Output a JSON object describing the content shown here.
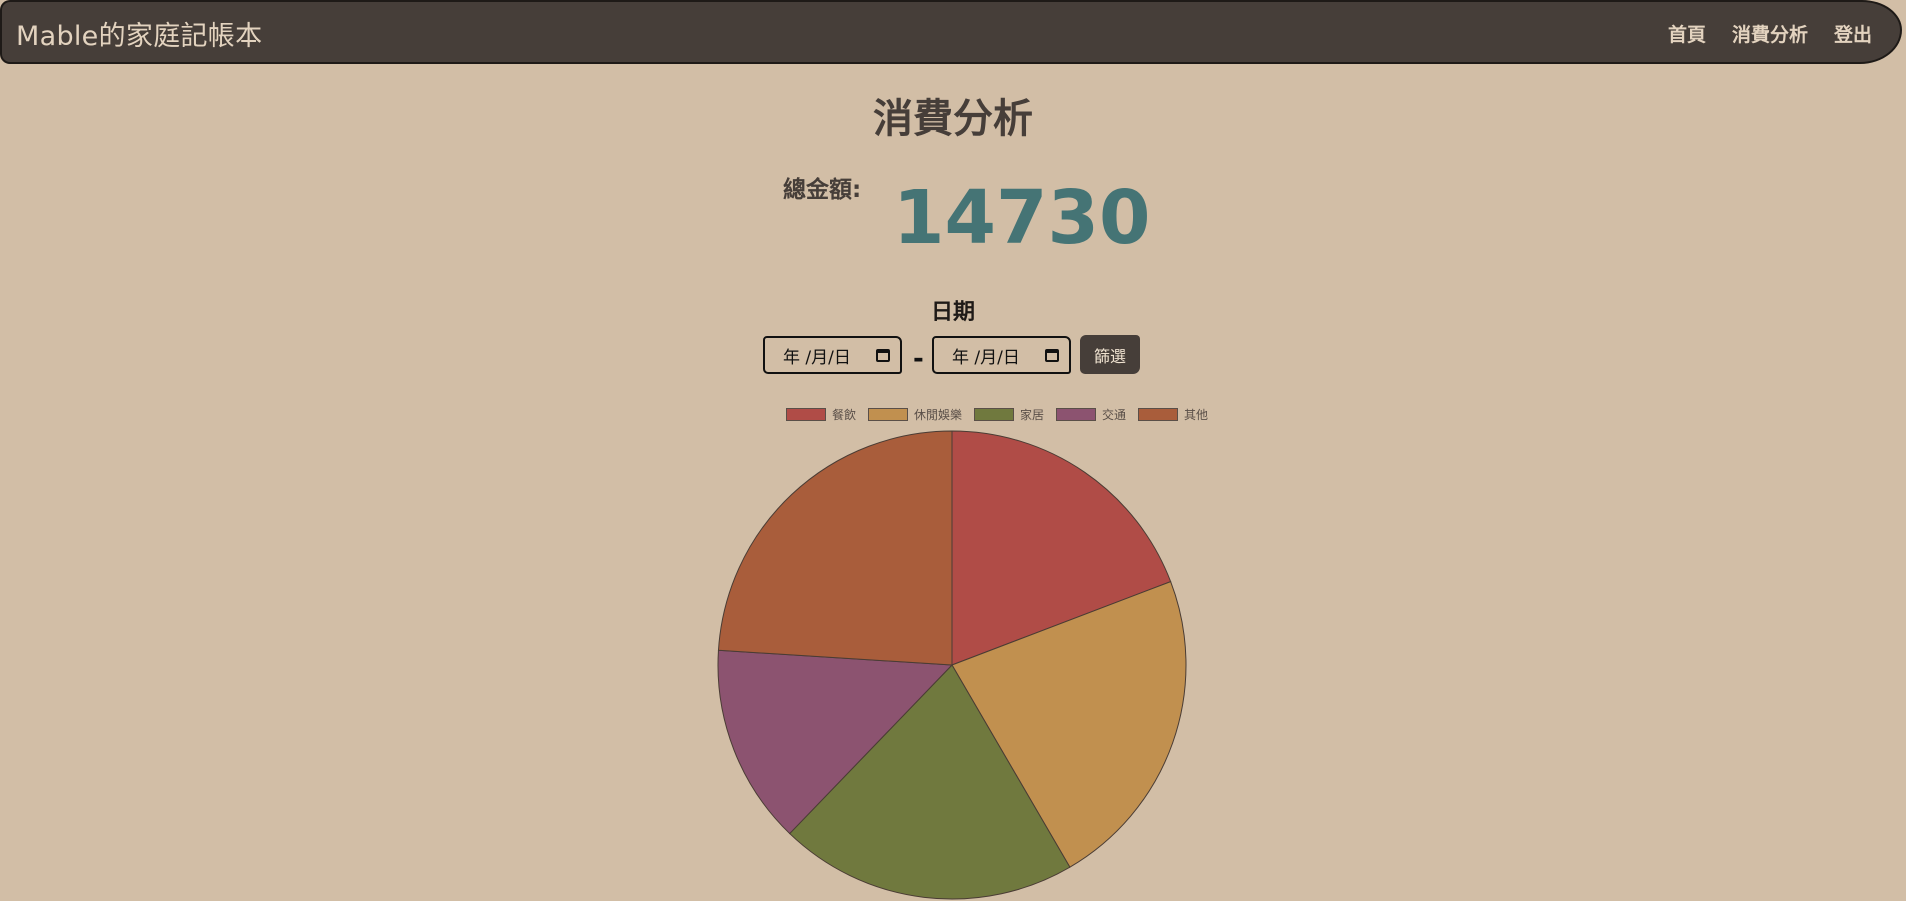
{
  "navbar": {
    "brand": "Mable的家庭記帳本",
    "links": [
      "首頁",
      "消費分析",
      "登出"
    ]
  },
  "page_title": "消費分析",
  "total": {
    "label": "總金額:",
    "value": "14730"
  },
  "date_filter": {
    "label": "日期",
    "start_placeholder": "年 /月/日",
    "end_placeholder": "年 /月/日",
    "separator": "-",
    "button_label": "篩選"
  },
  "colors": {
    "navbar": "#463e39",
    "background": "#d2bea6",
    "total_value": "#457475"
  },
  "chart_data": {
    "type": "pie",
    "legend_position": "top",
    "categories": [
      "餐飲",
      "休閒娛樂",
      "家居",
      "交通",
      "其他"
    ],
    "values": [
      19.2,
      22.4,
      20.6,
      13.8,
      24.0
    ],
    "colors": [
      "#b04c47",
      "#c1904f",
      "#70793e",
      "#8c5370",
      "#a95d3b"
    ]
  }
}
